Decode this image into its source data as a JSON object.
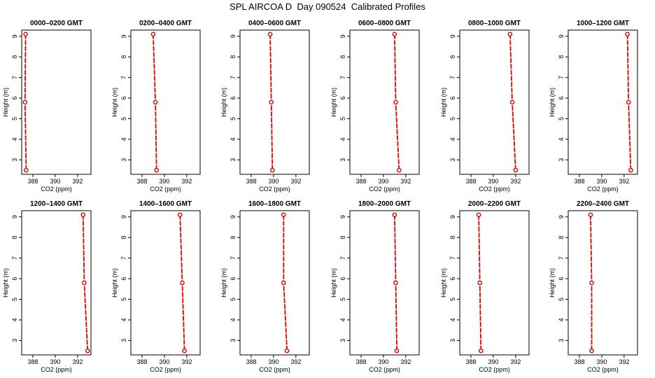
{
  "figure": {
    "title": "SPL AIRCOA D  Day 090524  Calibrated Profiles"
  },
  "style": {
    "line_color": "#dd0000",
    "point_color": "#dd0000",
    "axis_color": "#000000"
  },
  "chart_data": [
    {
      "type": "line",
      "title": "0000–0200 GMT",
      "xlabel": "CO2 (ppm)",
      "ylabel": "Height (m)",
      "xlim": [
        387,
        393.2
      ],
      "ylim": [
        2.3,
        9.3
      ],
      "xticks": [
        388,
        390,
        392
      ],
      "yticks": [
        3,
        4,
        5,
        6,
        7,
        8,
        9
      ],
      "series": [
        {
          "x": [
            387.35,
            387.3,
            387.4
          ],
          "y": [
            9.1,
            5.8,
            2.5
          ]
        }
      ]
    },
    {
      "type": "line",
      "title": "0200–0400 GMT",
      "xlabel": "CO2 (ppm)",
      "ylabel": "Height (m)",
      "xlim": [
        387,
        393.2
      ],
      "ylim": [
        2.3,
        9.3
      ],
      "xticks": [
        388,
        390,
        392
      ],
      "yticks": [
        3,
        4,
        5,
        6,
        7,
        8,
        9
      ],
      "series": [
        {
          "x": [
            389.0,
            389.2,
            389.3
          ],
          "y": [
            9.1,
            5.8,
            2.5
          ]
        }
      ]
    },
    {
      "type": "line",
      "title": "0400–0600 GMT",
      "xlabel": "CO2 (ppm)",
      "ylabel": "Height (m)",
      "xlim": [
        387,
        393.2
      ],
      "ylim": [
        2.3,
        9.3
      ],
      "xticks": [
        388,
        390,
        392
      ],
      "yticks": [
        3,
        4,
        5,
        6,
        7,
        8,
        9
      ],
      "series": [
        {
          "x": [
            389.7,
            389.8,
            389.9
          ],
          "y": [
            9.1,
            5.8,
            2.5
          ]
        }
      ]
    },
    {
      "type": "line",
      "title": "0600–0800 GMT",
      "xlabel": "CO2 (ppm)",
      "ylabel": "Height (m)",
      "xlim": [
        387,
        393.2
      ],
      "ylim": [
        2.3,
        9.3
      ],
      "xticks": [
        388,
        390,
        392
      ],
      "yticks": [
        3,
        4,
        5,
        6,
        7,
        8,
        9
      ],
      "series": [
        {
          "x": [
            391.0,
            391.1,
            391.4
          ],
          "y": [
            9.1,
            5.8,
            2.5
          ]
        }
      ]
    },
    {
      "type": "line",
      "title": "0800–1000 GMT",
      "xlabel": "CO2 (ppm)",
      "ylabel": "Height (m)",
      "xlim": [
        387,
        393.2
      ],
      "ylim": [
        2.3,
        9.3
      ],
      "xticks": [
        388,
        390,
        392
      ],
      "yticks": [
        3,
        4,
        5,
        6,
        7,
        8,
        9
      ],
      "series": [
        {
          "x": [
            391.5,
            391.7,
            392.0
          ],
          "y": [
            9.1,
            5.8,
            2.5
          ]
        }
      ]
    },
    {
      "type": "line",
      "title": "1000–1200 GMT",
      "xlabel": "CO2 (ppm)",
      "ylabel": "Height (m)",
      "xlim": [
        387,
        393.2
      ],
      "ylim": [
        2.3,
        9.3
      ],
      "xticks": [
        388,
        390,
        392
      ],
      "yticks": [
        3,
        4,
        5,
        6,
        7,
        8,
        9
      ],
      "series": [
        {
          "x": [
            392.3,
            392.4,
            392.6
          ],
          "y": [
            9.1,
            5.8,
            2.5
          ]
        }
      ]
    },
    {
      "type": "line",
      "title": "1200–1400 GMT",
      "xlabel": "CO2 (ppm)",
      "ylabel": "Height (m)",
      "xlim": [
        387,
        393.2
      ],
      "ylim": [
        2.3,
        9.3
      ],
      "xticks": [
        388,
        390,
        392
      ],
      "yticks": [
        3,
        4,
        5,
        6,
        7,
        8,
        9
      ],
      "series": [
        {
          "x": [
            392.5,
            392.6,
            392.9
          ],
          "y": [
            9.1,
            5.8,
            2.5
          ]
        }
      ]
    },
    {
      "type": "line",
      "title": "1400–1600 GMT",
      "xlabel": "CO2 (ppm)",
      "ylabel": "Height (m)",
      "xlim": [
        387,
        393.2
      ],
      "ylim": [
        2.3,
        9.3
      ],
      "xticks": [
        388,
        390,
        392
      ],
      "yticks": [
        3,
        4,
        5,
        6,
        7,
        8,
        9
      ],
      "series": [
        {
          "x": [
            391.4,
            391.6,
            391.8
          ],
          "y": [
            9.1,
            5.8,
            2.5
          ]
        }
      ]
    },
    {
      "type": "line",
      "title": "1600–1800 GMT",
      "xlabel": "CO2 (ppm)",
      "ylabel": "Height (m)",
      "xlim": [
        387,
        393.2
      ],
      "ylim": [
        2.3,
        9.3
      ],
      "xticks": [
        388,
        390,
        392
      ],
      "yticks": [
        3,
        4,
        5,
        6,
        7,
        8,
        9
      ],
      "series": [
        {
          "x": [
            390.9,
            390.9,
            391.2
          ],
          "y": [
            9.1,
            5.8,
            2.5
          ]
        }
      ]
    },
    {
      "type": "line",
      "title": "1800–2000 GMT",
      "xlabel": "CO2 (ppm)",
      "ylabel": "Height (m)",
      "xlim": [
        387,
        393.2
      ],
      "ylim": [
        2.3,
        9.3
      ],
      "xticks": [
        388,
        390,
        392
      ],
      "yticks": [
        3,
        4,
        5,
        6,
        7,
        8,
        9
      ],
      "series": [
        {
          "x": [
            391.0,
            391.1,
            391.2
          ],
          "y": [
            9.1,
            5.8,
            2.5
          ]
        }
      ]
    },
    {
      "type": "line",
      "title": "2000–2200 GMT",
      "xlabel": "CO2 (ppm)",
      "ylabel": "Height (m)",
      "xlim": [
        387,
        393.2
      ],
      "ylim": [
        2.3,
        9.3
      ],
      "xticks": [
        388,
        390,
        392
      ],
      "yticks": [
        3,
        4,
        5,
        6,
        7,
        8,
        9
      ],
      "series": [
        {
          "x": [
            388.7,
            388.8,
            388.9
          ],
          "y": [
            9.1,
            5.8,
            2.5
          ]
        }
      ]
    },
    {
      "type": "line",
      "title": "2200–2400 GMT",
      "xlabel": "CO2 (ppm)",
      "ylabel": "Height (m)",
      "xlim": [
        387,
        393.2
      ],
      "ylim": [
        2.3,
        9.3
      ],
      "xticks": [
        388,
        390,
        392
      ],
      "yticks": [
        3,
        4,
        5,
        6,
        7,
        8,
        9
      ],
      "series": [
        {
          "x": [
            389.0,
            389.1,
            389.1
          ],
          "y": [
            9.1,
            5.8,
            2.5
          ]
        }
      ]
    }
  ]
}
